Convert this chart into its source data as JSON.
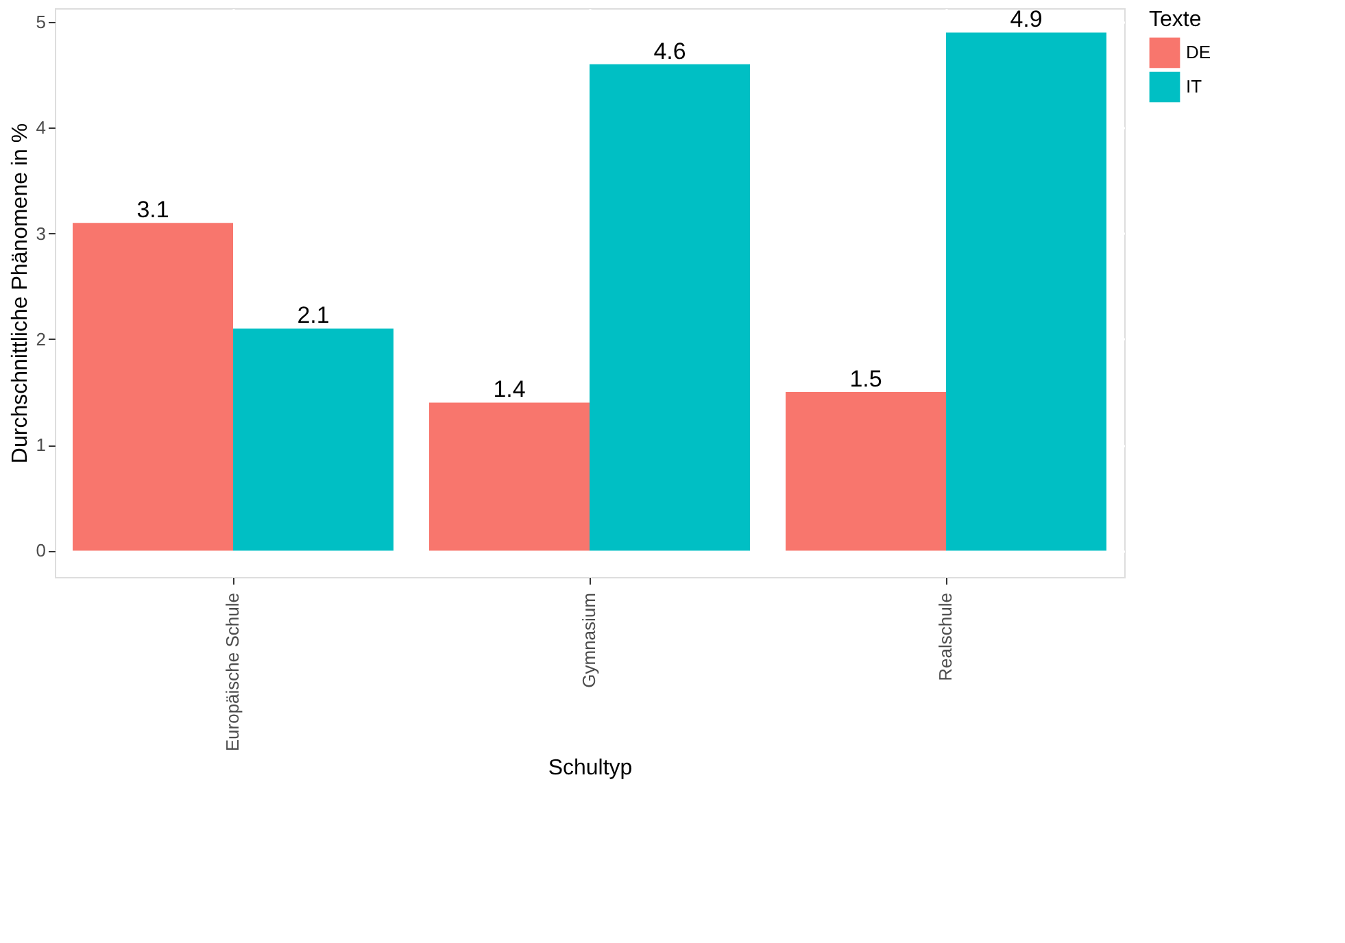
{
  "chart_data": {
    "type": "bar",
    "xlabel": "Schultyp",
    "ylabel": "Durchschnittliche Phänomene in %",
    "legend_title": "Texte",
    "categories": [
      "Europäische Schule",
      "Gymnasium",
      "Realschule"
    ],
    "series": [
      {
        "name": "DE",
        "color": "#f8766d",
        "values": [
          3.1,
          1.4,
          1.5
        ]
      },
      {
        "name": "IT",
        "color": "#00bfc4",
        "values": [
          2.1,
          4.6,
          4.9
        ]
      }
    ],
    "ylim": [
      -0.25,
      5.13
    ],
    "yticks": [
      0,
      1,
      2,
      3,
      4,
      5
    ],
    "grid": true,
    "legend": "right",
    "data_labels": true
  }
}
